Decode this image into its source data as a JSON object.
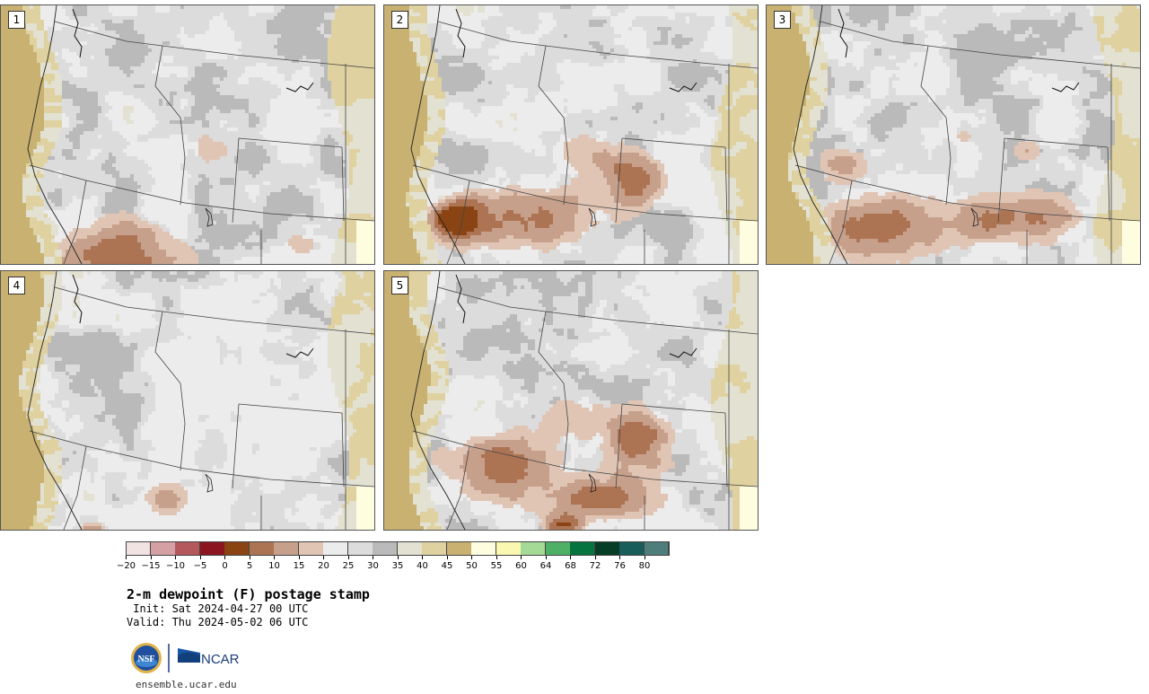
{
  "panels": [
    {
      "label": "1",
      "seed": 11,
      "blobs": [
        [
          0.3,
          0.95,
          0.22,
          0.16,
          0.95
        ],
        [
          0.55,
          0.55,
          0.1,
          0.1,
          0.55
        ],
        [
          0.8,
          0.92,
          0.08,
          0.08,
          0.6
        ],
        [
          0.48,
          0.03,
          0.06,
          0.05,
          0.45
        ]
      ]
    },
    {
      "label": "2",
      "seed": 23,
      "blobs": [
        [
          0.35,
          0.82,
          0.25,
          0.16,
          0.95
        ],
        [
          0.68,
          0.66,
          0.12,
          0.12,
          0.8
        ],
        [
          0.52,
          0.55,
          0.1,
          0.09,
          0.6
        ],
        [
          0.18,
          0.82,
          0.07,
          0.08,
          0.75
        ]
      ]
    },
    {
      "label": "3",
      "seed": 37,
      "blobs": [
        [
          0.3,
          0.85,
          0.2,
          0.16,
          1.0
        ],
        [
          0.68,
          0.82,
          0.2,
          0.12,
          0.95
        ],
        [
          0.52,
          0.5,
          0.08,
          0.08,
          0.5
        ],
        [
          0.7,
          0.55,
          0.06,
          0.08,
          0.5
        ],
        [
          0.2,
          0.6,
          0.08,
          0.08,
          0.6
        ]
      ]
    },
    {
      "label": "4",
      "seed": 51,
      "blobs": [
        [
          0.44,
          0.88,
          0.09,
          0.1,
          0.85
        ],
        [
          0.52,
          0.4,
          0.14,
          0.12,
          0.55
        ],
        [
          0.68,
          0.55,
          0.1,
          0.1,
          0.5
        ],
        [
          0.24,
          0.99,
          0.05,
          0.04,
          0.75
        ],
        [
          0.75,
          0.9,
          0.08,
          0.06,
          0.45
        ]
      ]
    },
    {
      "label": "5",
      "seed": 67,
      "blobs": [
        [
          0.3,
          0.75,
          0.18,
          0.17,
          0.95
        ],
        [
          0.6,
          0.88,
          0.2,
          0.1,
          0.9
        ],
        [
          0.68,
          0.63,
          0.12,
          0.14,
          0.85
        ],
        [
          0.5,
          0.55,
          0.09,
          0.09,
          0.55
        ],
        [
          0.48,
          0.98,
          0.05,
          0.04,
          0.8
        ]
      ]
    }
  ],
  "colorbar": {
    "colors": [
      "#f2e3e3",
      "#d4a0a4",
      "#b4585e",
      "#8b1520",
      "#8a4413",
      "#ad7454",
      "#c7a08c",
      "#e0c5b5",
      "#ececec",
      "#dcdcdc",
      "#bababa",
      "#e2e1d2",
      "#dfd2a0",
      "#c8b171",
      "#fefde0",
      "#f9f7b0",
      "#a5d996",
      "#4eb066",
      "#05743e",
      "#063d26",
      "#185d5a",
      "#4e7e7c"
    ],
    "ticks": [
      "-20",
      "-15",
      "-10",
      "-5",
      "0",
      "5",
      "10",
      "15",
      "20",
      "25",
      "30",
      "35",
      "40",
      "45",
      "50",
      "55",
      "60",
      "64",
      "68",
      "72",
      "76",
      "80"
    ]
  },
  "title": "2-m dewpoint (F) postage stamp",
  "init": " Init: Sat 2024-04-27 00 UTC",
  "valid": "Valid: Thu 2024-05-02 06 UTC",
  "logo": {
    "nsf": "NSF",
    "ncar": "NCAR"
  },
  "url": "ensemble.ucar.edu"
}
